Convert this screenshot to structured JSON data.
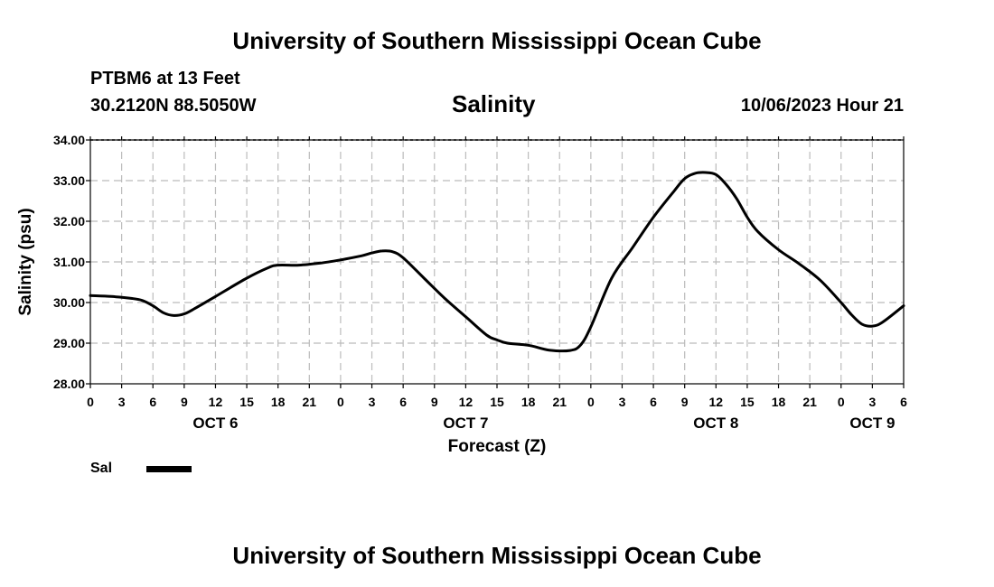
{
  "header": {
    "title": "University of Southern Mississippi Ocean Cube",
    "station": "PTBM6 at 13 Feet",
    "coordinates": "30.2120N  88.5050W",
    "chart_title": "Salinity",
    "datetime": "10/06/2023 Hour 21"
  },
  "footer": {
    "title": "University of Southern Mississippi Ocean Cube"
  },
  "legend": {
    "label": "Sal",
    "color": "#000000"
  },
  "chart_data": {
    "type": "line",
    "title": "Salinity",
    "xlabel": "Forecast (Z)",
    "ylabel": "Salinity (psu)",
    "ylim": [
      28.0,
      34.0
    ],
    "yticks": [
      "28.00",
      "29.00",
      "30.00",
      "31.00",
      "32.00",
      "33.00",
      "34.00"
    ],
    "xlim_hours": [
      0,
      78
    ],
    "xticks": [
      "0",
      "3",
      "6",
      "9",
      "12",
      "15",
      "18",
      "21",
      "0",
      "3",
      "6",
      "9",
      "12",
      "15",
      "18",
      "21",
      "0",
      "3",
      "6",
      "9",
      "12",
      "15",
      "18",
      "21",
      "0",
      "3",
      "6"
    ],
    "day_labels": [
      {
        "label": "OCT 6",
        "hour": 12
      },
      {
        "label": "OCT 7",
        "hour": 36
      },
      {
        "label": "OCT 8",
        "hour": 60
      },
      {
        "label": "OCT 9",
        "hour": 75
      }
    ],
    "grid": true,
    "series": [
      {
        "name": "Sal",
        "x_hours": [
          0,
          2,
          4,
          5,
          6,
          7,
          8,
          9,
          10,
          12,
          15,
          17,
          18,
          20,
          22,
          24,
          26,
          27,
          28,
          29,
          30,
          32,
          34,
          36,
          38,
          39,
          40,
          42,
          44,
          46,
          47,
          48,
          50,
          52,
          54,
          56,
          57,
          58,
          59,
          60,
          61,
          62,
          63,
          64,
          66,
          68,
          70,
          72,
          73,
          74,
          75,
          76,
          78
        ],
        "values": [
          30.17,
          30.15,
          30.1,
          30.05,
          29.92,
          29.75,
          29.68,
          29.72,
          29.85,
          30.15,
          30.6,
          30.85,
          30.92,
          30.92,
          30.97,
          31.05,
          31.15,
          31.22,
          31.27,
          31.25,
          31.1,
          30.6,
          30.1,
          29.65,
          29.2,
          29.08,
          29.0,
          28.95,
          28.83,
          28.82,
          28.95,
          29.4,
          30.6,
          31.35,
          32.1,
          32.75,
          33.05,
          33.18,
          33.2,
          33.15,
          32.9,
          32.55,
          32.1,
          31.75,
          31.3,
          30.95,
          30.55,
          30.0,
          29.7,
          29.47,
          29.42,
          29.52,
          29.92
        ]
      }
    ]
  }
}
